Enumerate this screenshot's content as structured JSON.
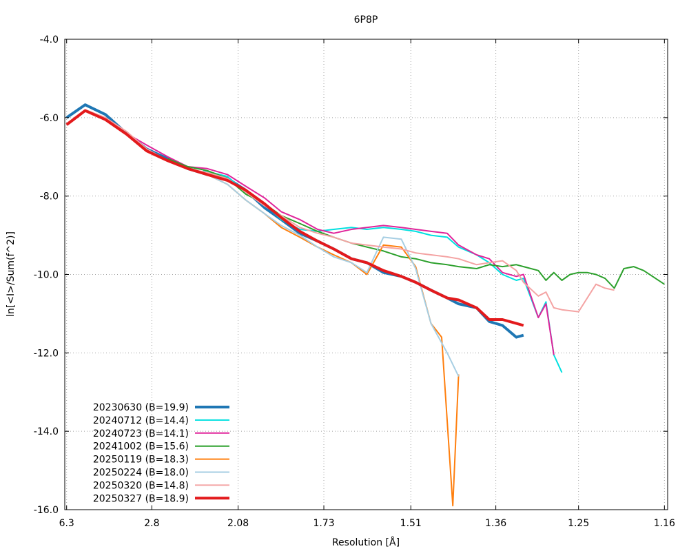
{
  "chart_data": {
    "type": "line",
    "title": "6P8P",
    "xlabel": "Resolution [Å]",
    "ylabel": "ln[<I>/Sum(f^2)]",
    "x_scale": "inverse-square (1/d^2)",
    "xlim": [
      6.6,
      1.157
    ],
    "ylim": [
      -16.0,
      -4.0
    ],
    "x_ticks": [
      6.3,
      2.8,
      2.08,
      1.73,
      1.51,
      1.36,
      1.25,
      1.16
    ],
    "x_tick_labels": [
      "6.3",
      "2.8",
      "2.08",
      "1.73",
      "1.51",
      "1.36",
      "1.25",
      "1.16"
    ],
    "y_ticks": [
      -4.0,
      -6.0,
      -8.0,
      -10.0,
      -12.0,
      -14.0,
      -16.0
    ],
    "y_tick_labels": [
      "-4.0",
      "-6.0",
      "-8.0",
      "-10.0",
      "-12.0",
      "-14.0",
      "-16.0"
    ],
    "grid": true,
    "legend_position": "bottom-left",
    "series": [
      {
        "name": "20230630 (B=19.9)",
        "color": "#1f77b4",
        "width": 4,
        "x": [
          6.3,
          4.59,
          3.73,
          3.21,
          2.87,
          2.61,
          2.42,
          2.27,
          2.14,
          2.04,
          1.95,
          1.88,
          1.81,
          1.75,
          1.7,
          1.65,
          1.61,
          1.57,
          1.53,
          1.5,
          1.47,
          1.44,
          1.42,
          1.39,
          1.37,
          1.35,
          1.33,
          1.32
        ],
        "y": [
          -6.0,
          -5.67,
          -5.92,
          -6.4,
          -6.8,
          -7.05,
          -7.3,
          -7.45,
          -7.55,
          -7.85,
          -8.3,
          -8.6,
          -8.95,
          -9.15,
          -9.35,
          -9.6,
          -9.7,
          -9.95,
          -10.05,
          -10.2,
          -10.4,
          -10.6,
          -10.75,
          -10.85,
          -11.2,
          -11.3,
          -11.6,
          -11.55
        ]
      },
      {
        "name": "20240712 (B=14.4)",
        "color": "#00e0e0",
        "width": 2,
        "x": [
          2.3,
          2.14,
          2.04,
          1.95,
          1.88,
          1.81,
          1.75,
          1.7,
          1.65,
          1.61,
          1.57,
          1.53,
          1.5,
          1.47,
          1.44,
          1.42,
          1.39,
          1.37,
          1.35,
          1.33,
          1.32,
          1.3,
          1.29,
          1.28,
          1.27
        ],
        "y": [
          -7.35,
          -7.5,
          -7.9,
          -8.2,
          -8.6,
          -8.85,
          -8.9,
          -8.85,
          -8.8,
          -8.85,
          -8.8,
          -8.85,
          -8.9,
          -9.0,
          -9.05,
          -9.3,
          -9.5,
          -9.7,
          -10.0,
          -10.15,
          -10.1,
          -11.1,
          -10.7,
          -12.05,
          -12.5
        ]
      },
      {
        "name": "20240723 (B=14.1)",
        "color": "#e0249a",
        "width": 2,
        "x": [
          3.21,
          2.87,
          2.61,
          2.42,
          2.27,
          2.14,
          2.04,
          1.95,
          1.88,
          1.81,
          1.75,
          1.7,
          1.65,
          1.61,
          1.57,
          1.53,
          1.5,
          1.47,
          1.44,
          1.42,
          1.39,
          1.37,
          1.35,
          1.33,
          1.32,
          1.3,
          1.29,
          1.28
        ],
        "y": [
          -6.4,
          -6.7,
          -7.0,
          -7.25,
          -7.3,
          -7.45,
          -7.75,
          -8.05,
          -8.4,
          -8.6,
          -8.85,
          -8.95,
          -8.85,
          -8.8,
          -8.75,
          -8.8,
          -8.85,
          -8.9,
          -8.95,
          -9.25,
          -9.5,
          -9.6,
          -9.95,
          -10.05,
          -10.0,
          -11.1,
          -10.75,
          -12.05
        ]
      },
      {
        "name": "20241002 (B=15.6)",
        "color": "#2ca02c",
        "width": 2,
        "x": [
          2.61,
          2.42,
          2.27,
          2.14,
          2.04,
          1.95,
          1.88,
          1.81,
          1.75,
          1.7,
          1.65,
          1.61,
          1.57,
          1.53,
          1.5,
          1.47,
          1.44,
          1.42,
          1.39,
          1.37,
          1.35,
          1.33,
          1.32,
          1.3,
          1.29,
          1.28,
          1.27,
          1.26,
          1.25,
          1.24,
          1.23,
          1.22,
          1.21,
          1.2,
          1.19,
          1.18,
          1.16
        ],
        "y": [
          -7.05,
          -7.25,
          -7.35,
          -7.55,
          -7.95,
          -8.2,
          -8.5,
          -8.7,
          -8.9,
          -9.05,
          -9.2,
          -9.3,
          -9.4,
          -9.55,
          -9.6,
          -9.7,
          -9.75,
          -9.8,
          -9.85,
          -9.75,
          -9.8,
          -9.75,
          -9.8,
          -9.9,
          -10.15,
          -9.95,
          -10.15,
          -10.0,
          -9.95,
          -9.95,
          -10.0,
          -10.1,
          -10.35,
          -9.85,
          -9.8,
          -9.9,
          -10.25
        ]
      },
      {
        "name": "20250119 (B=18.3)",
        "color": "#ff7f0e",
        "width": 2,
        "x": [
          2.27,
          2.14,
          2.04,
          1.95,
          1.88,
          1.81,
          1.75,
          1.7,
          1.65,
          1.61,
          1.57,
          1.53,
          1.5,
          1.47,
          1.45,
          1.43,
          1.42
        ],
        "y": [
          -7.45,
          -7.7,
          -8.1,
          -8.45,
          -8.8,
          -9.05,
          -9.3,
          -9.5,
          -9.7,
          -10.0,
          -9.25,
          -9.3,
          -9.8,
          -11.25,
          -11.6,
          -15.9,
          -12.55
        ]
      },
      {
        "name": "20250224 (B=18.0)",
        "color": "#a6cee3",
        "width": 2,
        "x": [
          2.27,
          2.14,
          2.04,
          1.95,
          1.88,
          1.81,
          1.75,
          1.7,
          1.65,
          1.61,
          1.57,
          1.53,
          1.5,
          1.47,
          1.44,
          1.42
        ],
        "y": [
          -7.45,
          -7.7,
          -8.1,
          -8.45,
          -8.75,
          -9.0,
          -9.3,
          -9.55,
          -9.7,
          -9.95,
          -9.05,
          -9.1,
          -9.85,
          -11.25,
          -12.0,
          -12.6
        ]
      },
      {
        "name": "20250320 (B=14.8)",
        "color": "#f4a3a3",
        "width": 2,
        "x": [
          6.3,
          4.59,
          3.73,
          3.21,
          2.87,
          2.61,
          2.42,
          2.27,
          2.14,
          2.04,
          1.95,
          1.88,
          1.81,
          1.75,
          1.7,
          1.65,
          1.61,
          1.57,
          1.53,
          1.5,
          1.47,
          1.44,
          1.42,
          1.39,
          1.37,
          1.35,
          1.33,
          1.32,
          1.3,
          1.29,
          1.28,
          1.27,
          1.25,
          1.23,
          1.22,
          1.21
        ],
        "y": [
          -6.15,
          -5.8,
          -6.0,
          -6.35,
          -6.8,
          -7.1,
          -7.3,
          -7.4,
          -7.55,
          -7.9,
          -8.25,
          -8.5,
          -8.8,
          -8.95,
          -9.05,
          -9.2,
          -9.25,
          -9.3,
          -9.35,
          -9.45,
          -9.5,
          -9.55,
          -9.6,
          -9.75,
          -9.7,
          -9.65,
          -9.9,
          -10.2,
          -10.55,
          -10.45,
          -10.85,
          -10.9,
          -10.95,
          -10.25,
          -10.35,
          -10.4
        ]
      },
      {
        "name": "20250327 (B=18.9)",
        "color": "#e31a1c",
        "width": 4,
        "x": [
          6.3,
          4.59,
          3.73,
          3.21,
          2.87,
          2.61,
          2.42,
          2.27,
          2.14,
          2.04,
          1.95,
          1.88,
          1.81,
          1.75,
          1.7,
          1.65,
          1.61,
          1.57,
          1.53,
          1.5,
          1.47,
          1.44,
          1.42,
          1.39,
          1.37,
          1.35,
          1.33,
          1.32
        ],
        "y": [
          -6.18,
          -5.82,
          -6.05,
          -6.42,
          -6.85,
          -7.1,
          -7.3,
          -7.45,
          -7.6,
          -7.85,
          -8.2,
          -8.55,
          -8.9,
          -9.15,
          -9.35,
          -9.6,
          -9.7,
          -9.9,
          -10.05,
          -10.2,
          -10.4,
          -10.6,
          -10.65,
          -10.85,
          -11.15,
          -11.15,
          -11.25,
          -11.3
        ]
      }
    ]
  }
}
